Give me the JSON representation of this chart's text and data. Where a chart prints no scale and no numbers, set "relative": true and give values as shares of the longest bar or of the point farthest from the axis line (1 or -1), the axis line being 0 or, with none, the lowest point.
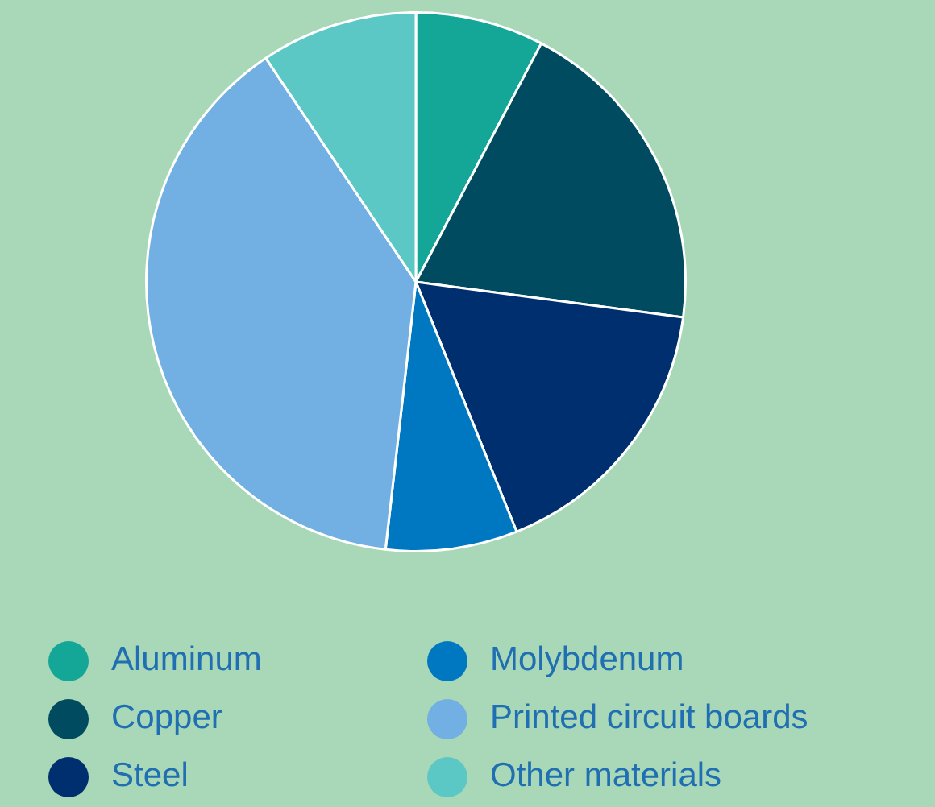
{
  "chart_data": {
    "type": "pie",
    "relative": true,
    "categories": [
      "Aluminum",
      "Copper",
      "Steel",
      "Molybdenum",
      "Printed circuit boards",
      "Other materials"
    ],
    "values": [
      7.7,
      19.4,
      16.8,
      7.9,
      38.8,
      9.4
    ],
    "colors": [
      "#14a797",
      "#004b5f",
      "#002f6f",
      "#0078c1",
      "#72afe2",
      "#5bc8c6"
    ],
    "legend": "bottom"
  }
}
